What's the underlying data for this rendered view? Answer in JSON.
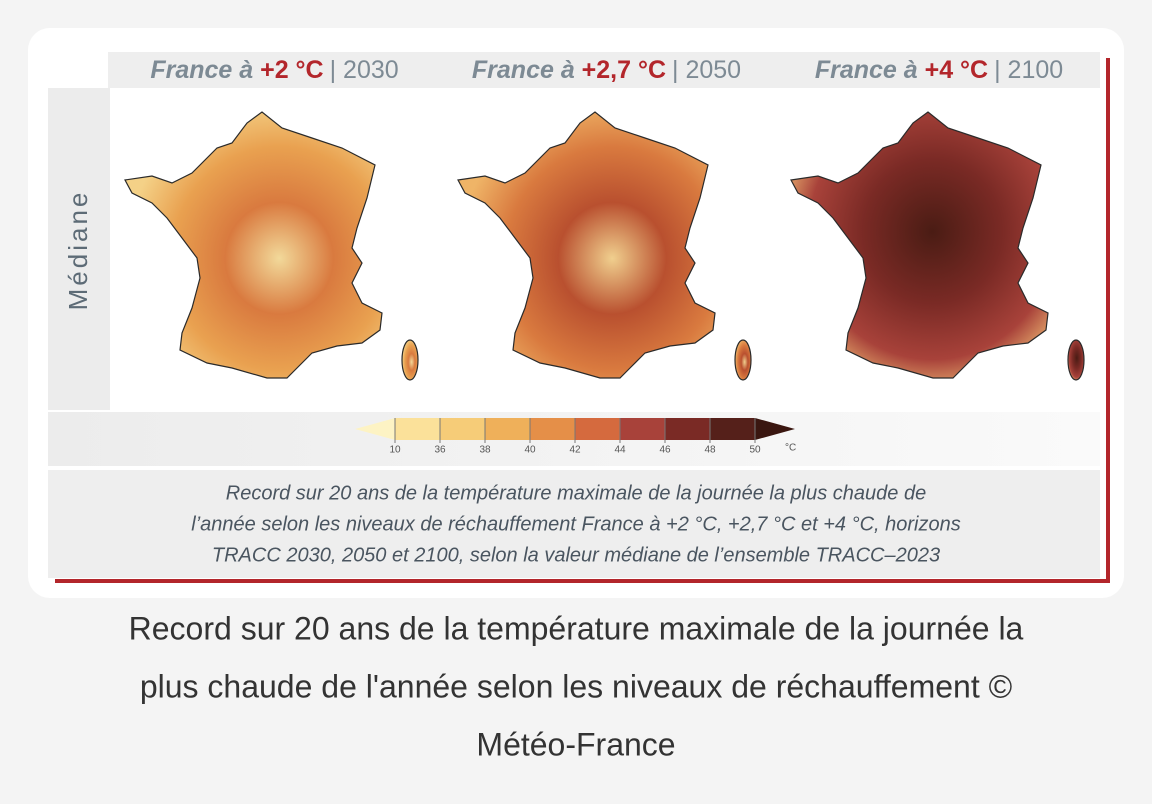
{
  "panels": [
    {
      "prefix": "France à ",
      "warming": "+2 °C",
      "horizon": "| 2030"
    },
    {
      "prefix": "France à ",
      "warming": "+2,7 °C",
      "horizon": "| 2050"
    },
    {
      "prefix": "France à ",
      "warming": "+4 °C",
      "horizon": "| 2100"
    }
  ],
  "row_label": "Médiane",
  "colorbar": {
    "ticks": [
      10,
      36,
      38,
      40,
      42,
      44,
      46,
      48,
      50
    ],
    "unit": "°C",
    "colors": [
      "#fdf3c4",
      "#fbe19a",
      "#f6cc78",
      "#efb05a",
      "#e58f48",
      "#d56a3e",
      "#a8423a",
      "#7a2a25",
      "#55201a",
      "#3a1610"
    ]
  },
  "caption": [
    "Record sur 20 ans de la température maximale de la journée la plus chaude de",
    "l’année selon les niveaux de réchauffement France à +2 °C, +2,7 °C et +4 °C, horizons",
    "TRACC 2030, 2050 et 2100, selon la valeur médiane de l’ensemble TRACC–2023"
  ],
  "footer": [
    "Record sur 20 ans de la température maximale de la journée la",
    "plus chaude de l'année selon les niveaux de réchauffement ©",
    "Météo-France"
  ]
}
